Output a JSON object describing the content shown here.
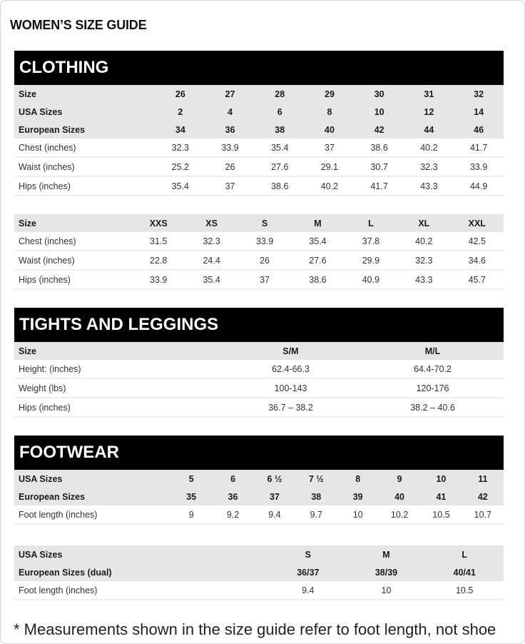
{
  "title": "WOMEN’S SIZE GUIDE",
  "sections": {
    "clothing": {
      "heading": "CLOTHING",
      "tables": [
        {
          "head_rows": [
            [
              "Size",
              "26",
              "27",
              "28",
              "29",
              "30",
              "31",
              "32"
            ],
            [
              "USA Sizes",
              "2",
              "4",
              "6",
              "8",
              "10",
              "12",
              "14"
            ],
            [
              "European Sizes",
              "34",
              "36",
              "38",
              "40",
              "42",
              "44",
              "46"
            ]
          ],
          "body_rows": [
            [
              "Chest (inches)",
              "32.3",
              "33.9",
              "35.4",
              "37",
              "38.6",
              "40.2",
              "41.7"
            ],
            [
              "Waist (inches)",
              "25.2",
              "26",
              "27.6",
              "29.1",
              "30.7",
              "32.3",
              "33.9"
            ],
            [
              "Hips (inches)",
              "35.4",
              "37",
              "38.6",
              "40.2",
              "41.7",
              "43.3",
              "44.9"
            ]
          ]
        },
        {
          "head_rows": [
            [
              "Size",
              "XXS",
              "XS",
              "S",
              "M",
              "L",
              "XL",
              "XXL"
            ]
          ],
          "body_rows": [
            [
              "Chest (inches)",
              "31.5",
              "32.3",
              "33.9",
              "35.4",
              "37.8",
              "40.2",
              "42.5"
            ],
            [
              "Waist (inches)",
              "22.8",
              "24.4",
              "26",
              "27.6",
              "29.9",
              "32.3",
              "34.6"
            ],
            [
              "Hips (inches)",
              "33.9",
              "35.4",
              "37",
              "38.6",
              "40.9",
              "43.3",
              "45.7"
            ]
          ]
        }
      ]
    },
    "tights": {
      "heading": "TIGHTS AND LEGGINGS",
      "tables": [
        {
          "head_rows": [
            [
              "Size",
              "S/M",
              "M/L"
            ]
          ],
          "body_rows": [
            [
              "Height: (inches)",
              "62.4-66.3",
              "64.4-70.2"
            ],
            [
              "Weight (lbs)",
              "100-143",
              "120-176"
            ],
            [
              "Hips (inches)",
              "36.7 – 38.2",
              "38.2 – 40.6"
            ]
          ]
        }
      ]
    },
    "footwear": {
      "heading": "FOOTWEAR",
      "tables": [
        {
          "head_rows": [
            [
              "USA Sizes",
              "5",
              "6",
              "6 ½",
              "7 ½",
              "8",
              "9",
              "10",
              "11"
            ],
            [
              "European Sizes",
              "35",
              "36",
              "37",
              "38",
              "39",
              "40",
              "41",
              "42"
            ]
          ],
          "body_rows": [
            [
              "Foot length (inches)",
              "9",
              "9.2",
              "9.4",
              "9.7",
              "10",
              "10.2",
              "10.5",
              "10.7"
            ]
          ]
        },
        {
          "head_rows": [
            [
              "USA Sizes",
              "S",
              "M",
              "L"
            ],
            [
              "European Sizes (dual)",
              "36/37",
              "38/39",
              "40/41"
            ]
          ],
          "body_rows": [
            [
              "Foot length (inches)",
              "9.4",
              "10",
              "10.5"
            ]
          ]
        }
      ]
    }
  },
  "footnote": "* Measurements shown in the size guide refer to foot length, not shoe"
}
